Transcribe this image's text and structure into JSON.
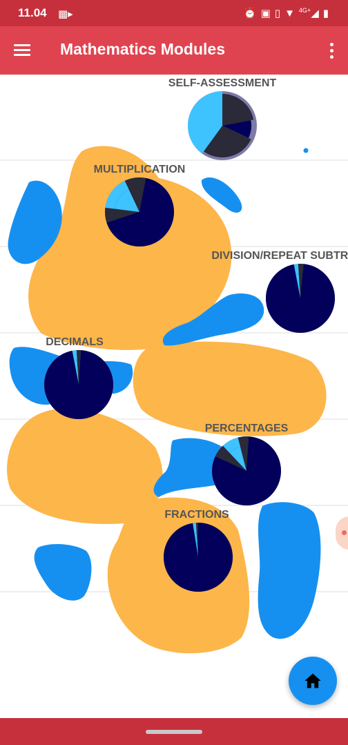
{
  "status_bar": {
    "time": "11.04",
    "network": "4G+",
    "icons": [
      "video-record-icon",
      "alarm-icon",
      "cast-icon",
      "vibrate-icon",
      "wifi-icon",
      "signal-icon",
      "battery-icon"
    ]
  },
  "app_bar": {
    "title": "Mathematics Modules",
    "menu_icon": "hamburger-menu-icon",
    "more_icon": "more-vert-icon"
  },
  "colors": {
    "status_bar": "#c6303c",
    "app_bar": "#e04350",
    "blob_orange": "#fdb64a",
    "blob_blue": "#1690f0",
    "pie_base": "#02005a",
    "pie_dark": "#2a2a38",
    "pie_light": "#3ec3ff",
    "ring_purple": "#7d7aa8",
    "ring_brown": "#7a6058",
    "fab": "#1690f0"
  },
  "modules": [
    {
      "label": "SELF-ASSESSMENT",
      "ring": "purple",
      "slices": [
        {
          "pct": 0.22,
          "c": "dark"
        },
        {
          "pct": 0.1,
          "c": "base"
        },
        {
          "pct": 0.28,
          "c": "dark"
        },
        {
          "pct": 0.4,
          "c": "light"
        }
      ]
    },
    {
      "label": "MULTIPLICATION",
      "ring": "brown",
      "slices": [
        {
          "pct": 0.03,
          "c": "dark"
        },
        {
          "pct": 0.67,
          "c": "base"
        },
        {
          "pct": 0.07,
          "c": "dark"
        },
        {
          "pct": 0.16,
          "c": "light"
        },
        {
          "pct": 0.07,
          "c": "dark"
        }
      ]
    },
    {
      "label": "DIVISION/REPEAT SUBTRACTION",
      "ring": "purple",
      "slices": [
        {
          "pct": 0.015,
          "c": "dark"
        },
        {
          "pct": 0.955,
          "c": "base"
        },
        {
          "pct": 0.02,
          "c": "light"
        },
        {
          "pct": 0.01,
          "c": "dark"
        }
      ]
    },
    {
      "label": "DECIMALS",
      "ring": "split",
      "slices": [
        {
          "pct": 0.01,
          "c": "dark"
        },
        {
          "pct": 0.96,
          "c": "base"
        },
        {
          "pct": 0.02,
          "c": "light"
        },
        {
          "pct": 0.01,
          "c": "dark"
        }
      ]
    },
    {
      "label": "PERCENTAGES",
      "ring": "purple",
      "slices": [
        {
          "pct": 0.01,
          "c": "dark"
        },
        {
          "pct": 0.81,
          "c": "base"
        },
        {
          "pct": 0.06,
          "c": "dark"
        },
        {
          "pct": 0.08,
          "c": "light"
        },
        {
          "pct": 0.04,
          "c": "dark"
        }
      ]
    },
    {
      "label": "FRACTIONS",
      "ring": "brown",
      "slices": [
        {
          "pct": 0.975,
          "c": "base"
        },
        {
          "pct": 0.015,
          "c": "light"
        },
        {
          "pct": 0.01,
          "c": "dark"
        }
      ]
    }
  ],
  "fab": {
    "icon": "home-icon"
  },
  "nav_bar": {
    "handle": "gesture-handle"
  }
}
